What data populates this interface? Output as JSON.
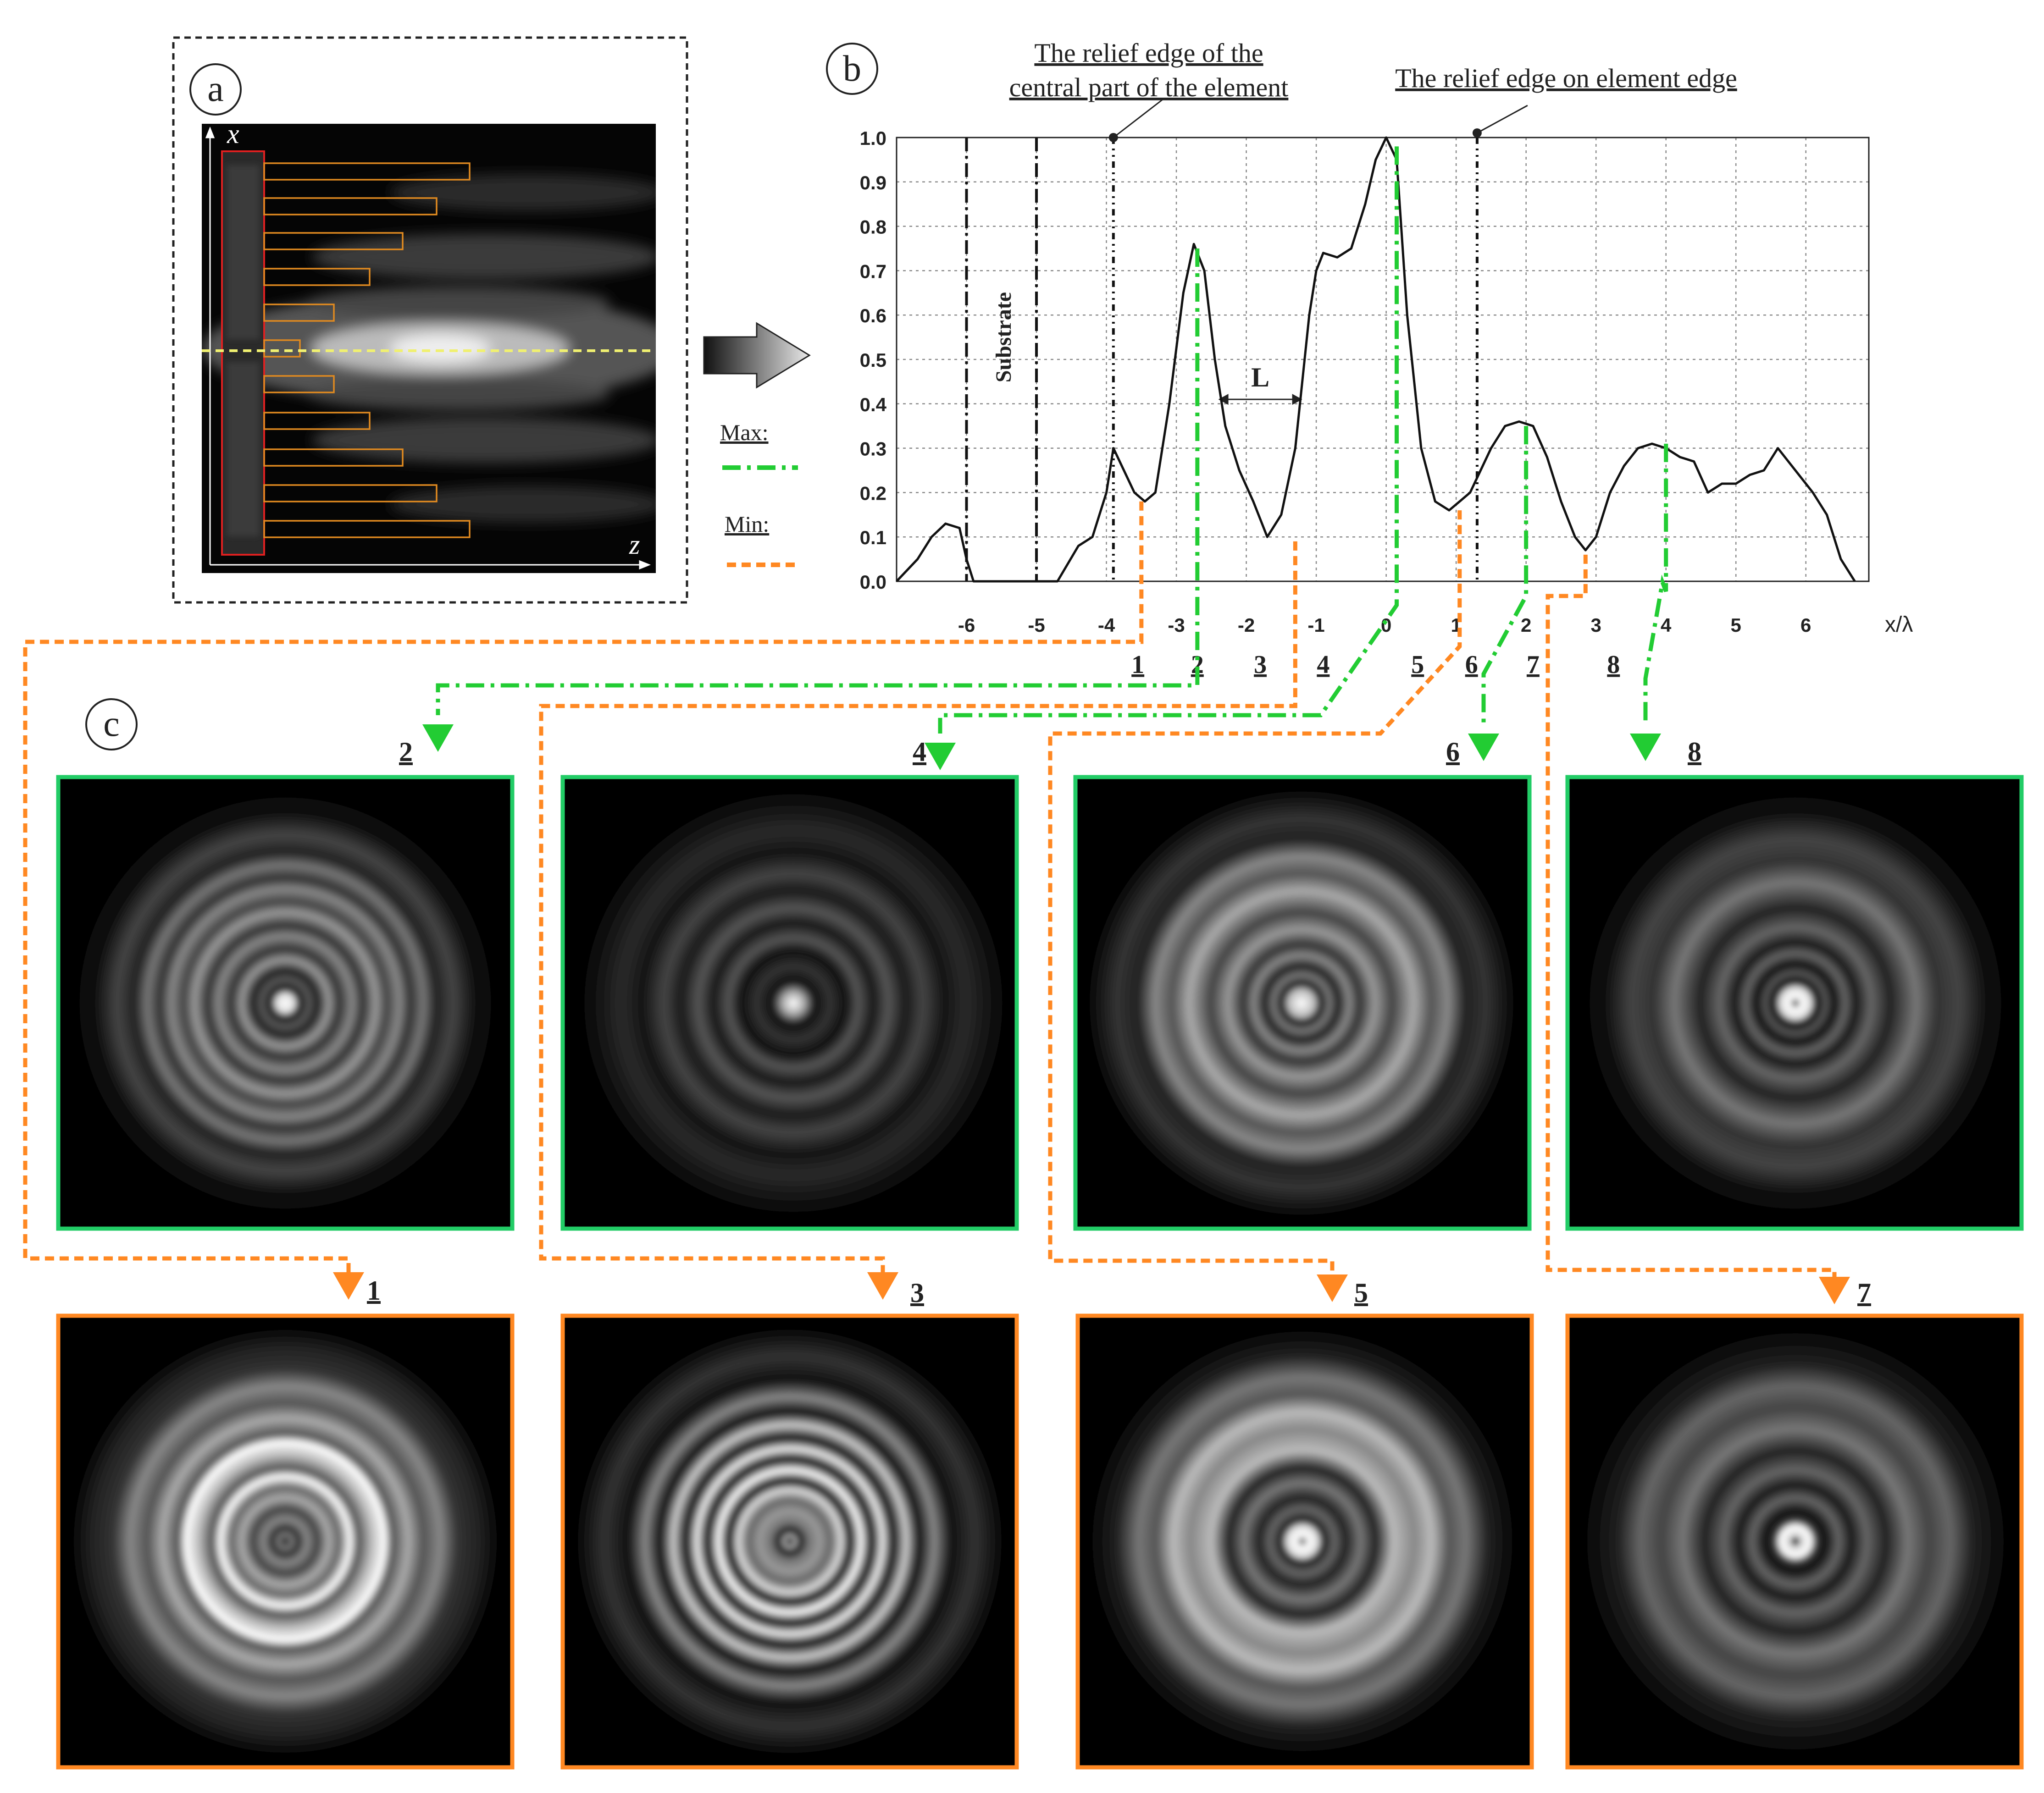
{
  "panel_labels": {
    "a": "a",
    "b": "b",
    "c": "c"
  },
  "panel_a": {
    "axis_x": "x",
    "axis_z": "z"
  },
  "panel_b": {
    "annotation_central": [
      "The relief edge of the",
      "central part of the element"
    ],
    "annotation_edge": "The relief edge on element edge",
    "substrate_label": "Substrate",
    "period_label": "L",
    "max_label": "Max:",
    "min_label": "Min:",
    "x_axis_label": "x/λ",
    "max_line_color": "#22cc33",
    "min_line_color": "#ff8822"
  },
  "chart_data": {
    "type": "line",
    "xlim": [
      -7,
      6.9
    ],
    "ylim": [
      0,
      1
    ],
    "xticks": [
      "-6",
      "-5",
      "-4",
      "-3",
      "-2",
      "-1",
      "0",
      "1",
      "2",
      "3",
      "4",
      "5",
      "6"
    ],
    "yticks": [
      "0.0",
      "0.1",
      "0.2",
      "0.3",
      "0.4",
      "0.5",
      "0.6",
      "0.7",
      "0.8",
      "0.9",
      "1.0"
    ],
    "grid": true,
    "vertical_markers": [
      -6,
      -5,
      -3.9,
      1.3
    ],
    "point_numbers": [
      "1",
      "2",
      "3",
      "4",
      "5",
      "6",
      "7",
      "8"
    ],
    "series": [
      {
        "x": [
          -7.0,
          -6.7,
          -6.5,
          -6.3,
          -6.1,
          -6.0,
          -5.9,
          -5.5,
          -5.3,
          -5.0,
          -4.7,
          -4.4,
          -4.2,
          -4.0,
          -3.9,
          -3.75,
          -3.6,
          -3.45,
          -3.3,
          -3.1,
          -2.9,
          -2.75,
          -2.6,
          -2.45,
          -2.3,
          -2.1,
          -1.9,
          -1.7,
          -1.5,
          -1.3,
          -1.1,
          -1.0,
          -0.9,
          -0.7,
          -0.5,
          -0.3,
          -0.15,
          0.0,
          0.15,
          0.3,
          0.5,
          0.7,
          0.9,
          1.05,
          1.2,
          1.35,
          1.5,
          1.7,
          1.9,
          2.1,
          2.3,
          2.5,
          2.7,
          2.85,
          3.0,
          3.2,
          3.4,
          3.6,
          3.8,
          4.0,
          4.2,
          4.4,
          4.6,
          4.8,
          5.0,
          5.2,
          5.4,
          5.6,
          5.7,
          5.9,
          6.1,
          6.3,
          6.5,
          6.7
        ],
        "y": [
          0.0,
          0.05,
          0.1,
          0.13,
          0.12,
          0.05,
          0.0,
          0.0,
          0.0,
          0.0,
          0.0,
          0.08,
          0.1,
          0.2,
          0.3,
          0.25,
          0.2,
          0.18,
          0.2,
          0.4,
          0.65,
          0.76,
          0.7,
          0.5,
          0.35,
          0.25,
          0.18,
          0.1,
          0.15,
          0.3,
          0.6,
          0.7,
          0.74,
          0.73,
          0.75,
          0.85,
          0.95,
          1.0,
          0.95,
          0.6,
          0.3,
          0.18,
          0.16,
          0.18,
          0.2,
          0.25,
          0.3,
          0.35,
          0.36,
          0.35,
          0.28,
          0.18,
          0.1,
          0.07,
          0.1,
          0.2,
          0.26,
          0.3,
          0.31,
          0.3,
          0.28,
          0.27,
          0.2,
          0.22,
          0.22,
          0.24,
          0.25,
          0.3,
          0.28,
          0.24,
          0.2,
          0.15,
          0.05,
          0.0
        ]
      }
    ]
  },
  "panel_c": {
    "top_row_labels": [
      "2",
      "4",
      "6",
      "8"
    ],
    "bottom_row_labels": [
      "1",
      "3",
      "5",
      "7"
    ],
    "top_border_color": "#22cc66",
    "bottom_border_color": "#ff8822"
  }
}
